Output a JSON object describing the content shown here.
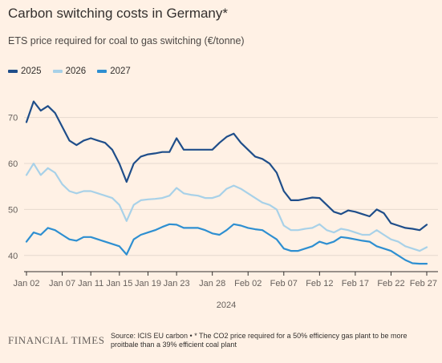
{
  "header": {
    "title": "Carbon switching costs in Germany*",
    "subtitle": "ETS price required for coal to gas switching (€/tonne)"
  },
  "footer": {
    "logo_text": "FINANCIAL TIMES",
    "source": "Source: ICIS EU carbon • * The CO2 price required for a 50% efficiency gas plant to be more proitbale than a 39% efficient coal plant"
  },
  "chart_data": {
    "type": "line",
    "title": "Carbon switching costs in Germany*",
    "subtitle": "ETS price required for coal to gas switching (€/tonne)",
    "xlabel": "2024",
    "ylabel": "",
    "ylim": [
      37,
      75
    ],
    "yticks": [
      40,
      50,
      60,
      70
    ],
    "xlim": [
      "2024-01-02",
      "2024-02-27"
    ],
    "xticks": [
      "Jan 02",
      "Jan 07",
      "Jan 11",
      "Jan 15",
      "Jan 19",
      "Jan 23",
      "Jan 28",
      "Feb 02",
      "Feb 07",
      "Feb 12",
      "Feb 17",
      "Feb 22",
      "Feb 27"
    ],
    "xtick_days": [
      1,
      6,
      10,
      14,
      18,
      22,
      27,
      32,
      37,
      42,
      47,
      52,
      57
    ],
    "grid": "horizontal",
    "legend_position": "top-left",
    "colors": {
      "background": "#fff1e5",
      "grid": "#e6d9ce",
      "axis": "#33302e",
      "text": "#66605c"
    },
    "series": [
      {
        "name": "2025",
        "color": "#1f4e8a",
        "points": [
          [
            "2024-01-02",
            69
          ],
          [
            "2024-01-03",
            73.5
          ],
          [
            "2024-01-04",
            71.5
          ],
          [
            "2024-01-05",
            72.5
          ],
          [
            "2024-01-06",
            71
          ],
          [
            "2024-01-07",
            68
          ],
          [
            "2024-01-08",
            65
          ],
          [
            "2024-01-09",
            64
          ],
          [
            "2024-01-10",
            65
          ],
          [
            "2024-01-11",
            65.5
          ],
          [
            "2024-01-12",
            65
          ],
          [
            "2024-01-13",
            64.5
          ],
          [
            "2024-01-14",
            63
          ],
          [
            "2024-01-15",
            60
          ],
          [
            "2024-01-16",
            56
          ],
          [
            "2024-01-17",
            60
          ],
          [
            "2024-01-18",
            61.5
          ],
          [
            "2024-01-19",
            62
          ],
          [
            "2024-01-20",
            62.2
          ],
          [
            "2024-01-21",
            62.5
          ],
          [
            "2024-01-22",
            62.5
          ],
          [
            "2024-01-23",
            65.5
          ],
          [
            "2024-01-24",
            63
          ],
          [
            "2024-01-25",
            63
          ],
          [
            "2024-01-26",
            63
          ],
          [
            "2024-01-27",
            63
          ],
          [
            "2024-01-28",
            63
          ],
          [
            "2024-01-29",
            64.5
          ],
          [
            "2024-01-30",
            65.8
          ],
          [
            "2024-01-31",
            66.5
          ],
          [
            "2024-02-01",
            64.5
          ],
          [
            "2024-02-02",
            63
          ],
          [
            "2024-02-03",
            61.5
          ],
          [
            "2024-02-04",
            61
          ],
          [
            "2024-02-05",
            60
          ],
          [
            "2024-02-06",
            58
          ],
          [
            "2024-02-07",
            54
          ],
          [
            "2024-02-08",
            52
          ],
          [
            "2024-02-09",
            52
          ],
          [
            "2024-02-10",
            52.3
          ],
          [
            "2024-02-11",
            52.6
          ],
          [
            "2024-02-12",
            52.5
          ],
          [
            "2024-02-13",
            51
          ],
          [
            "2024-02-14",
            49.5
          ],
          [
            "2024-02-15",
            49
          ],
          [
            "2024-02-16",
            49.8
          ],
          [
            "2024-02-17",
            49.5
          ],
          [
            "2024-02-18",
            49
          ],
          [
            "2024-02-19",
            48.5
          ],
          [
            "2024-02-20",
            50
          ],
          [
            "2024-02-21",
            49.2
          ],
          [
            "2024-02-22",
            47
          ],
          [
            "2024-02-23",
            46.5
          ],
          [
            "2024-02-24",
            46
          ],
          [
            "2024-02-25",
            45.8
          ],
          [
            "2024-02-26",
            45.5
          ],
          [
            "2024-02-27",
            46.7
          ]
        ]
      },
      {
        "name": "2026",
        "color": "#a8d1e8",
        "points": [
          [
            "2024-01-02",
            57.5
          ],
          [
            "2024-01-03",
            60
          ],
          [
            "2024-01-04",
            57.5
          ],
          [
            "2024-01-05",
            59
          ],
          [
            "2024-01-06",
            58
          ],
          [
            "2024-01-07",
            55.5
          ],
          [
            "2024-01-08",
            54
          ],
          [
            "2024-01-09",
            53.5
          ],
          [
            "2024-01-10",
            54
          ],
          [
            "2024-01-11",
            54
          ],
          [
            "2024-01-12",
            53.5
          ],
          [
            "2024-01-13",
            53
          ],
          [
            "2024-01-14",
            52.5
          ],
          [
            "2024-01-15",
            51
          ],
          [
            "2024-01-16",
            47.5
          ],
          [
            "2024-01-17",
            51
          ],
          [
            "2024-01-18",
            52
          ],
          [
            "2024-01-19",
            52.2
          ],
          [
            "2024-01-20",
            52.3
          ],
          [
            "2024-01-21",
            52.5
          ],
          [
            "2024-01-22",
            53
          ],
          [
            "2024-01-23",
            54.7
          ],
          [
            "2024-01-24",
            53.5
          ],
          [
            "2024-01-25",
            53.2
          ],
          [
            "2024-01-26",
            53
          ],
          [
            "2024-01-27",
            52.5
          ],
          [
            "2024-01-28",
            52.5
          ],
          [
            "2024-01-29",
            53
          ],
          [
            "2024-01-30",
            54.5
          ],
          [
            "2024-01-31",
            55.2
          ],
          [
            "2024-02-01",
            54.5
          ],
          [
            "2024-02-02",
            53.5
          ],
          [
            "2024-02-03",
            52.5
          ],
          [
            "2024-02-04",
            51.5
          ],
          [
            "2024-02-05",
            51
          ],
          [
            "2024-02-06",
            50
          ],
          [
            "2024-02-07",
            46.5
          ],
          [
            "2024-02-08",
            45.5
          ],
          [
            "2024-02-09",
            45.5
          ],
          [
            "2024-02-10",
            45.8
          ],
          [
            "2024-02-11",
            46
          ],
          [
            "2024-02-12",
            46.8
          ],
          [
            "2024-02-13",
            45.5
          ],
          [
            "2024-02-14",
            45
          ],
          [
            "2024-02-15",
            45.8
          ],
          [
            "2024-02-16",
            45.5
          ],
          [
            "2024-02-17",
            45
          ],
          [
            "2024-02-18",
            44.5
          ],
          [
            "2024-02-19",
            44.5
          ],
          [
            "2024-02-20",
            45.5
          ],
          [
            "2024-02-21",
            44.5
          ],
          [
            "2024-02-22",
            43.5
          ],
          [
            "2024-02-23",
            43
          ],
          [
            "2024-02-24",
            42
          ],
          [
            "2024-02-25",
            41.5
          ],
          [
            "2024-02-26",
            41
          ],
          [
            "2024-02-27",
            41.8
          ]
        ]
      },
      {
        "name": "2027",
        "color": "#2e8fd1",
        "points": [
          [
            "2024-01-02",
            43
          ],
          [
            "2024-01-03",
            45
          ],
          [
            "2024-01-04",
            44.5
          ],
          [
            "2024-01-05",
            46
          ],
          [
            "2024-01-06",
            45.5
          ],
          [
            "2024-01-07",
            44.5
          ],
          [
            "2024-01-08",
            43.5
          ],
          [
            "2024-01-09",
            43.2
          ],
          [
            "2024-01-10",
            44
          ],
          [
            "2024-01-11",
            44
          ],
          [
            "2024-01-12",
            43.5
          ],
          [
            "2024-01-13",
            43
          ],
          [
            "2024-01-14",
            42.5
          ],
          [
            "2024-01-15",
            42
          ],
          [
            "2024-01-16",
            40.2
          ],
          [
            "2024-01-17",
            43.5
          ],
          [
            "2024-01-18",
            44.5
          ],
          [
            "2024-01-19",
            45
          ],
          [
            "2024-01-20",
            45.5
          ],
          [
            "2024-01-21",
            46.2
          ],
          [
            "2024-01-22",
            46.8
          ],
          [
            "2024-01-23",
            46.7
          ],
          [
            "2024-01-24",
            46
          ],
          [
            "2024-01-25",
            46
          ],
          [
            "2024-01-26",
            46
          ],
          [
            "2024-01-27",
            45.5
          ],
          [
            "2024-01-28",
            44.8
          ],
          [
            "2024-01-29",
            44.5
          ],
          [
            "2024-01-30",
            45.5
          ],
          [
            "2024-01-31",
            46.8
          ],
          [
            "2024-02-01",
            46.5
          ],
          [
            "2024-02-02",
            46
          ],
          [
            "2024-02-03",
            45.7
          ],
          [
            "2024-02-04",
            45.5
          ],
          [
            "2024-02-05",
            44.5
          ],
          [
            "2024-02-06",
            43.5
          ],
          [
            "2024-02-07",
            41.5
          ],
          [
            "2024-02-08",
            41
          ],
          [
            "2024-02-09",
            41
          ],
          [
            "2024-02-10",
            41.5
          ],
          [
            "2024-02-11",
            42
          ],
          [
            "2024-02-12",
            43
          ],
          [
            "2024-02-13",
            42.5
          ],
          [
            "2024-02-14",
            43
          ],
          [
            "2024-02-15",
            44
          ],
          [
            "2024-02-16",
            43.8
          ],
          [
            "2024-02-17",
            43.5
          ],
          [
            "2024-02-18",
            43.2
          ],
          [
            "2024-02-19",
            43
          ],
          [
            "2024-02-20",
            42
          ],
          [
            "2024-02-21",
            41.5
          ],
          [
            "2024-02-22",
            41
          ],
          [
            "2024-02-23",
            40
          ],
          [
            "2024-02-24",
            39
          ],
          [
            "2024-02-25",
            38.3
          ],
          [
            "2024-02-26",
            38.2
          ],
          [
            "2024-02-27",
            38.2
          ]
        ]
      }
    ]
  }
}
